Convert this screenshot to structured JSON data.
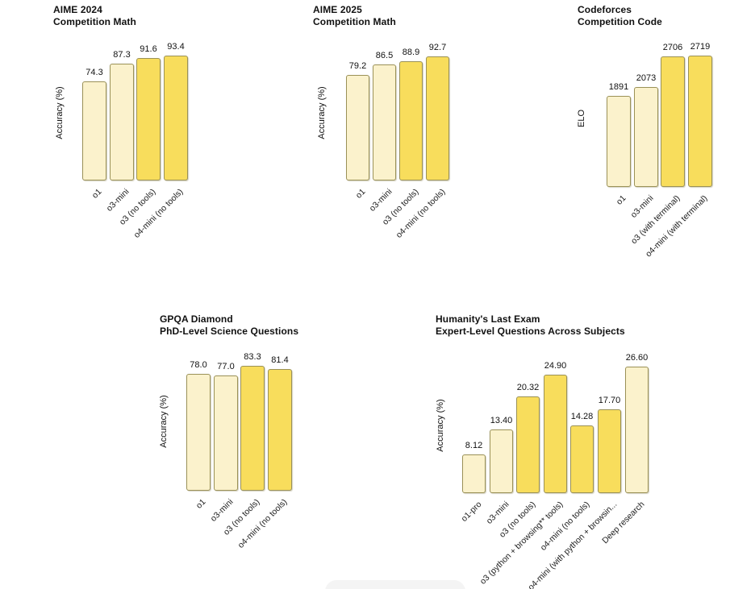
{
  "page": {
    "background": "#ffffff"
  },
  "colors": {
    "bar_light": "#fbf2cc",
    "bar_dark": "#f8dd5c",
    "bar_border": "#9a9157",
    "text": "#111111",
    "overlay_gray": "#f4f4f4"
  },
  "bottom_overlay": {
    "visible": true,
    "color": "#f4f4f4"
  },
  "chart_data": [
    {
      "type": "bar",
      "title": "AIME 2024",
      "subtitle": "Competition Math",
      "ylabel": "Accuracy (%)",
      "xlabel": "",
      "ylim": [
        0,
        100
      ],
      "grid": false,
      "legend": "none",
      "categories": [
        "o1",
        "o3-mini",
        "o3 (no tools)",
        "o4-mini (no tools)"
      ],
      "values": [
        74.3,
        87.3,
        91.6,
        93.4
      ],
      "value_labels": [
        "74.3",
        "87.3",
        "91.6",
        "93.4"
      ],
      "highlight": [
        false,
        false,
        true,
        true
      ]
    },
    {
      "type": "bar",
      "title": "AIME 2025",
      "subtitle": "Competition Math",
      "ylabel": "Accuracy (%)",
      "xlabel": "",
      "ylim": [
        0,
        100
      ],
      "grid": false,
      "legend": "none",
      "categories": [
        "o1",
        "o3-mini",
        "o3 (no tools)",
        "o4-mini (no tools)"
      ],
      "values": [
        79.2,
        86.5,
        88.9,
        92.7
      ],
      "value_labels": [
        "79.2",
        "86.5",
        "88.9",
        "92.7"
      ],
      "highlight": [
        false,
        false,
        true,
        true
      ]
    },
    {
      "type": "bar",
      "title": "Codeforces",
      "subtitle": "Competition Code",
      "ylabel": "ELO",
      "xlabel": "",
      "ylim": [
        0,
        2800
      ],
      "grid": false,
      "legend": "none",
      "categories": [
        "o1",
        "o3-mini",
        "o3 (with terminal)",
        "o4-mini (with terminal)"
      ],
      "values": [
        1891,
        2073,
        2706,
        2719
      ],
      "value_labels": [
        "1891",
        "2073",
        "2706",
        "2719"
      ],
      "highlight": [
        false,
        false,
        true,
        true
      ]
    },
    {
      "type": "bar",
      "title": "GPQA Diamond",
      "subtitle": "PhD-Level Science Questions",
      "ylabel": "Accuracy (%)",
      "xlabel": "",
      "ylim": [
        0,
        100
      ],
      "grid": false,
      "legend": "none",
      "categories": [
        "o1",
        "o3-mini",
        "o3 (no tools)",
        "o4-mini (no tools)"
      ],
      "values": [
        78.0,
        77.0,
        83.3,
        81.4
      ],
      "value_labels": [
        "78.0",
        "77.0",
        "83.3",
        "81.4"
      ],
      "highlight": [
        false,
        false,
        true,
        true
      ]
    },
    {
      "type": "bar",
      "title": "Humanity's Last Exam",
      "subtitle": "Expert-Level Questions Across Subjects",
      "ylabel": "Accuracy (%)",
      "xlabel": "",
      "ylim": [
        0,
        30
      ],
      "grid": false,
      "legend": "none",
      "categories": [
        "o1-pro",
        "o3-mini",
        "o3 (no tools)",
        "o3 (python + browsing** tools)",
        "o4-mini (no tools)",
        "o4-mini (with python + browsin...",
        "Deep research"
      ],
      "values": [
        8.12,
        13.4,
        20.32,
        24.9,
        14.28,
        17.7,
        26.6
      ],
      "value_labels": [
        "8.12",
        "13.40",
        "20.32",
        "24.90",
        "14.28",
        "17.70",
        "26.60"
      ],
      "highlight": [
        false,
        false,
        true,
        true,
        true,
        true,
        false
      ]
    }
  ]
}
